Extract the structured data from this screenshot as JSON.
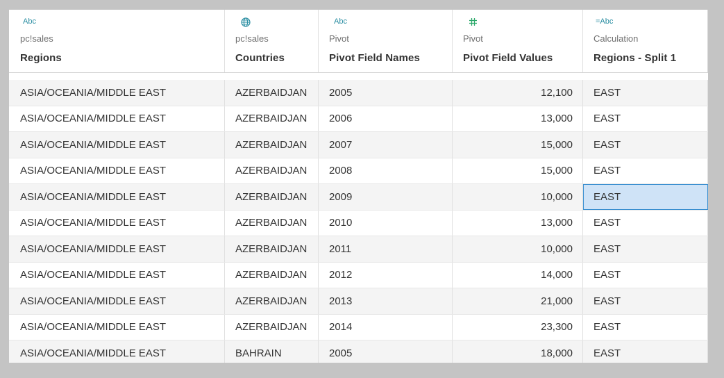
{
  "columns": [
    {
      "type_icon": "Abc",
      "type_icon_name": "string-type-icon",
      "source": "pc!sales",
      "name": "Regions"
    },
    {
      "type_icon": "",
      "type_icon_name": "globe-icon",
      "source": "pc!sales",
      "name": "Countries"
    },
    {
      "type_icon": "Abc",
      "type_icon_name": "string-type-icon",
      "source": "Pivot",
      "name": "Pivot Field Names"
    },
    {
      "type_icon": "",
      "type_icon_name": "hash-icon",
      "source": "Pivot",
      "name": "Pivot Field Values"
    },
    {
      "type_icon": "=Abc",
      "type_icon_name": "calculated-string-icon",
      "source": "Calculation",
      "name": "Regions - Split 1"
    }
  ],
  "colors": {
    "type_icon": "#2c8fa3",
    "selected_cell": "#cfe3f7",
    "selected_border": "#3a8fd0"
  },
  "rows": [
    [
      "ASIA/OCEANIA/MIDDLE EAST",
      "AZERBAIDJAN",
      "2005",
      "12,100",
      "EAST"
    ],
    [
      "ASIA/OCEANIA/MIDDLE EAST",
      "AZERBAIDJAN",
      "2006",
      "13,000",
      "EAST"
    ],
    [
      "ASIA/OCEANIA/MIDDLE EAST",
      "AZERBAIDJAN",
      "2007",
      "15,000",
      "EAST"
    ],
    [
      "ASIA/OCEANIA/MIDDLE EAST",
      "AZERBAIDJAN",
      "2008",
      "15,000",
      "EAST"
    ],
    [
      "ASIA/OCEANIA/MIDDLE EAST",
      "AZERBAIDJAN",
      "2009",
      "10,000",
      "EAST"
    ],
    [
      "ASIA/OCEANIA/MIDDLE EAST",
      "AZERBAIDJAN",
      "2010",
      "13,000",
      "EAST"
    ],
    [
      "ASIA/OCEANIA/MIDDLE EAST",
      "AZERBAIDJAN",
      "2011",
      "10,000",
      "EAST"
    ],
    [
      "ASIA/OCEANIA/MIDDLE EAST",
      "AZERBAIDJAN",
      "2012",
      "14,000",
      "EAST"
    ],
    [
      "ASIA/OCEANIA/MIDDLE EAST",
      "AZERBAIDJAN",
      "2013",
      "21,000",
      "EAST"
    ],
    [
      "ASIA/OCEANIA/MIDDLE EAST",
      "AZERBAIDJAN",
      "2014",
      "23,300",
      "EAST"
    ],
    [
      "ASIA/OCEANIA/MIDDLE EAST",
      "BAHRAIN",
      "2005",
      "18,000",
      "EAST"
    ]
  ],
  "selected": {
    "row": 4,
    "col": 4
  }
}
